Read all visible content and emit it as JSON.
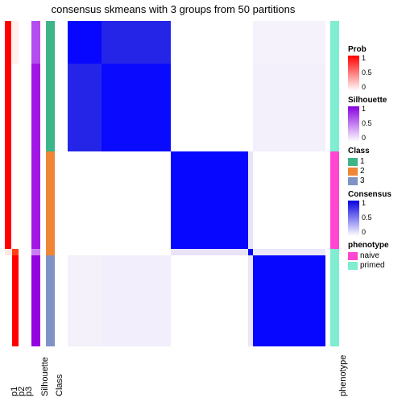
{
  "title": "consensus skmeans with 3 groups from 50 partitions",
  "row_heights": [
    0.13,
    0.27,
    0.3,
    0.02,
    0.28
  ],
  "tracks": {
    "p1": {
      "label": "p1",
      "segs": [
        {
          "h": 0.13,
          "c": "#ff0000"
        },
        {
          "h": 0.27,
          "c": "#ff0000"
        },
        {
          "h": 0.3,
          "c": "#ff0000"
        },
        {
          "h": 0.02,
          "c": "#ffe8e0"
        },
        {
          "h": 0.28,
          "c": "#ffffff"
        }
      ]
    },
    "p2": {
      "label": "p2",
      "segs": [
        {
          "h": 0.13,
          "c": "#fff0eb"
        },
        {
          "h": 0.27,
          "c": "#ffffff"
        },
        {
          "h": 0.3,
          "c": "#ffffff"
        },
        {
          "h": 0.02,
          "c": "#ff3e1a"
        },
        {
          "h": 0.28,
          "c": "#ff0000"
        }
      ]
    },
    "p3": {
      "label": "p3",
      "segs": [
        {
          "h": 0.13,
          "c": "#ffffff"
        },
        {
          "h": 0.27,
          "c": "#ffffff"
        },
        {
          "h": 0.3,
          "c": "#ffffff"
        },
        {
          "h": 0.02,
          "c": "#ffffff"
        },
        {
          "h": 0.28,
          "c": "#ffffff"
        }
      ]
    },
    "sil": {
      "label": "Silhouette",
      "wide": true,
      "segs": [
        {
          "h": 0.13,
          "c": "#b44cef"
        },
        {
          "h": 0.27,
          "c": "#a217e6"
        },
        {
          "h": 0.3,
          "c": "#a217e6"
        },
        {
          "h": 0.02,
          "c": "#c87ef2"
        },
        {
          "h": 0.28,
          "c": "#9303e0"
        }
      ]
    },
    "cls": {
      "label": "Class",
      "wide": true,
      "segs": [
        {
          "h": 0.13,
          "c": "#3eb489"
        },
        {
          "h": 0.27,
          "c": "#3eb489"
        },
        {
          "h": 0.3,
          "c": "#ef8636"
        },
        {
          "h": 0.02,
          "c": "#ef8636"
        },
        {
          "h": 0.28,
          "c": "#8193c4"
        }
      ]
    }
  },
  "heat": {
    "col_widths": [
      0.13,
      0.27,
      0.3,
      0.02,
      0.28
    ],
    "cells": [
      [
        "#0707ff",
        "#2525e8",
        "#ffffff",
        "#ffffff",
        "#f5f2fb"
      ],
      [
        "#2525e8",
        "#0a0aff",
        "#ffffff",
        "#ffffff",
        "#f3effb"
      ],
      [
        "#ffffff",
        "#ffffff",
        "#0707ff",
        "#e9e3f7",
        "#ffffff"
      ],
      [
        "#ffffff",
        "#ffffff",
        "#e9e3f7",
        "#0707ff",
        "#ece7f8"
      ],
      [
        "#f4f1fb",
        "#f2eefb",
        "#ffffff",
        "#ece7f8",
        "#0707ff"
      ]
    ]
  },
  "phenotype_track": {
    "label": "phenotype",
    "segs": [
      {
        "h": 0.13,
        "c": "#7fedd0"
      },
      {
        "h": 0.27,
        "c": "#7fedd0"
      },
      {
        "h": 0.3,
        "c": "#ff47d1"
      },
      {
        "h": 0.02,
        "c": "#7fedd0"
      },
      {
        "h": 0.28,
        "c": "#7fedd0"
      }
    ]
  },
  "legends": {
    "prob": {
      "title": "Prob",
      "from": "#ffffff",
      "to": "#ff0000",
      "ticks": [
        "1",
        "0.5",
        "0"
      ]
    },
    "sil": {
      "title": "Silhouette",
      "from": "#ffffff",
      "to": "#8800e0",
      "ticks": [
        "1",
        "0.5",
        "0"
      ]
    },
    "cls": {
      "title": "Class",
      "items": [
        {
          "c": "#3eb489",
          "l": "1"
        },
        {
          "c": "#ef8636",
          "l": "2"
        },
        {
          "c": "#8193c4",
          "l": "3"
        }
      ]
    },
    "cons": {
      "title": "Consensus",
      "from": "#ffffff",
      "to": "#0800e0",
      "ticks": [
        "1",
        "0.5",
        "0"
      ]
    },
    "pheno": {
      "title": "phenotype",
      "items": [
        {
          "c": "#ff47d1",
          "l": "naive"
        },
        {
          "c": "#7fedd0",
          "l": "primed"
        }
      ]
    }
  }
}
